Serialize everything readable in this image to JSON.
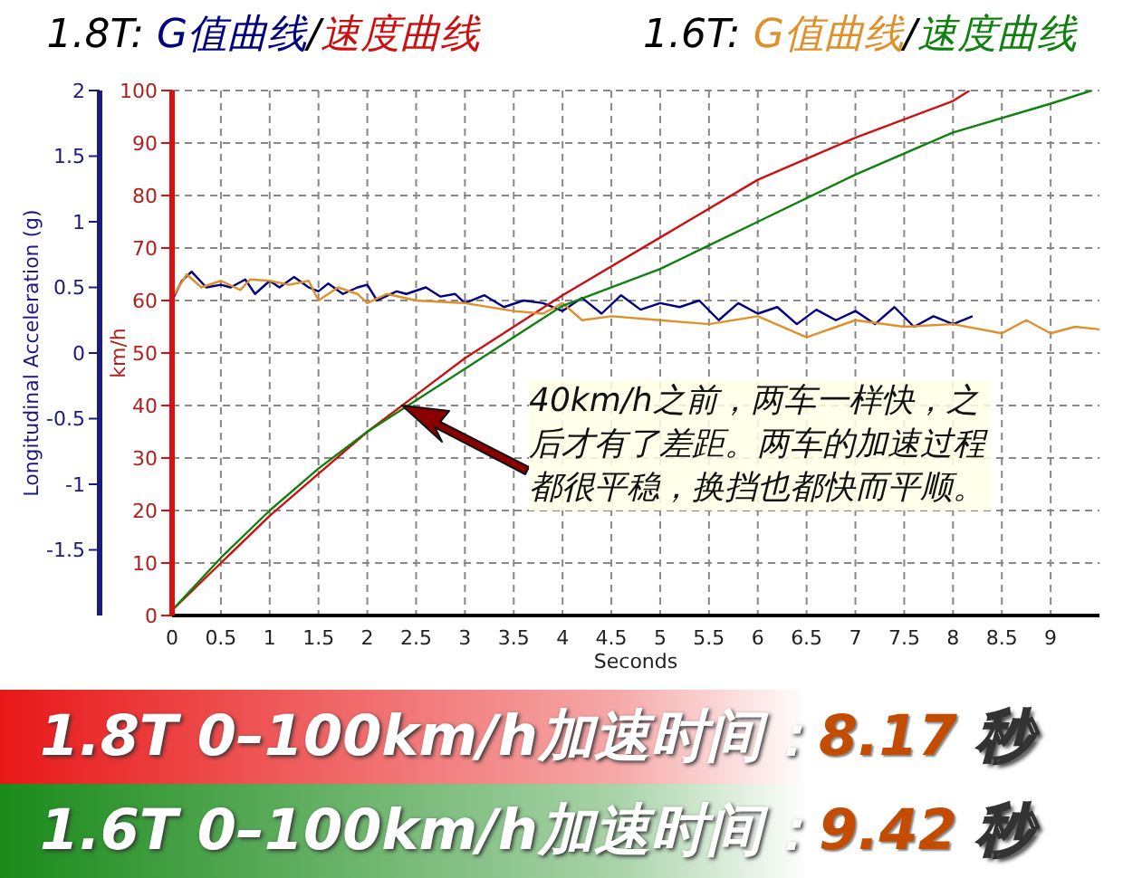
{
  "chart_data": {
    "type": "line",
    "xlabel": "Seconds",
    "ylabel": "km/h",
    "y2label": "Longitudinal Acceleration (g)",
    "xlim": [
      0,
      9.5
    ],
    "xticks": [
      0,
      0.5,
      1,
      1.5,
      2,
      2.5,
      3,
      3.5,
      4,
      4.5,
      5,
      5.5,
      6,
      6.5,
      7,
      7.5,
      8,
      8.5,
      9
    ],
    "ylim": [
      0,
      100
    ],
    "yticks": [
      0,
      10,
      20,
      30,
      40,
      50,
      60,
      70,
      80,
      90,
      100
    ],
    "y2lim": [
      -2,
      2
    ],
    "y2ticks": [
      -1.5,
      -1,
      -0.5,
      0,
      0.5,
      1,
      1.5,
      2
    ],
    "grid": true,
    "legend": "top",
    "marker": "none",
    "line_style": "solid",
    "series": [
      {
        "name": "G值曲线",
        "color": "#000080",
        "axis": "y2",
        "x": [
          0,
          0.1,
          0.2,
          0.35,
          0.5,
          0.6,
          0.75,
          0.85,
          1,
          1.1,
          1.25,
          1.4,
          1.5,
          1.6,
          1.75,
          1.9,
          2,
          2.1,
          2.3,
          2.4,
          2.6,
          2.75,
          2.9,
          3,
          3.2,
          3.4,
          3.6,
          3.8,
          4,
          4.2,
          4.4,
          4.6,
          4.8,
          5,
          5.2,
          5.4,
          5.6,
          5.8,
          6,
          6.2,
          6.4,
          6.6,
          6.8,
          7,
          7.2,
          7.4,
          7.6,
          7.8,
          8,
          8.2
        ],
        "values": [
          0.4,
          0.55,
          0.62,
          0.5,
          0.52,
          0.5,
          0.56,
          0.45,
          0.55,
          0.5,
          0.58,
          0.5,
          0.47,
          0.53,
          0.45,
          0.5,
          0.52,
          0.4,
          0.47,
          0.45,
          0.5,
          0.43,
          0.45,
          0.38,
          0.44,
          0.35,
          0.4,
          0.38,
          0.32,
          0.42,
          0.3,
          0.44,
          0.33,
          0.38,
          0.35,
          0.4,
          0.25,
          0.38,
          0.3,
          0.35,
          0.22,
          0.33,
          0.25,
          0.32,
          0.22,
          0.35,
          0.2,
          0.28,
          0.22,
          0.28
        ]
      },
      {
        "name": "速度曲线",
        "color": "#cc1010",
        "axis": "y",
        "x": [
          0,
          0.5,
          1,
          1.5,
          2,
          2.5,
          3,
          3.5,
          4,
          5,
          6,
          7,
          8,
          8.17
        ],
        "values": [
          1,
          10,
          19,
          27,
          35,
          42,
          49,
          55,
          61,
          72,
          83,
          91,
          98,
          100
        ]
      },
      {
        "name": "G值曲线",
        "color": "#e0902a",
        "axis": "y2",
        "x": [
          0,
          0.15,
          0.3,
          0.5,
          0.7,
          0.8,
          1,
          1.2,
          1.4,
          1.5,
          1.7,
          1.9,
          2,
          2.2,
          2.5,
          3,
          3.5,
          3.8,
          4,
          4.2,
          4.5,
          5,
          5.5,
          6,
          6.5,
          7,
          7.5,
          8,
          8.5,
          8.75,
          9,
          9.25,
          9.5
        ],
        "values": [
          0.42,
          0.6,
          0.5,
          0.55,
          0.48,
          0.56,
          0.55,
          0.52,
          0.55,
          0.4,
          0.5,
          0.45,
          0.38,
          0.45,
          0.4,
          0.38,
          0.32,
          0.3,
          0.38,
          0.25,
          0.28,
          0.25,
          0.22,
          0.28,
          0.12,
          0.25,
          0.2,
          0.22,
          0.15,
          0.25,
          0.15,
          0.2,
          0.18
        ]
      },
      {
        "name": "速度曲线",
        "color": "#108010",
        "axis": "y",
        "x": [
          0,
          0.5,
          1,
          1.5,
          2,
          2.5,
          3,
          3.5,
          4,
          5,
          6,
          7,
          8,
          9,
          9.42
        ],
        "values": [
          1,
          11,
          20,
          28,
          35,
          41,
          47,
          53,
          59,
          66,
          75,
          84,
          92,
          97.5,
          100
        ]
      }
    ],
    "annotations": [
      "1.8T:",
      "/",
      "1.6T:",
      "/",
      "40km/h之前，两车一样快，之后才有了差距。两车的加速过程都很平稳，换挡也都快而平顺。",
      "1.8T 0–100km/h加速时间：8.17 秒",
      "1.6T 0–100km/h加速时间：9.42 秒"
    ]
  }
}
